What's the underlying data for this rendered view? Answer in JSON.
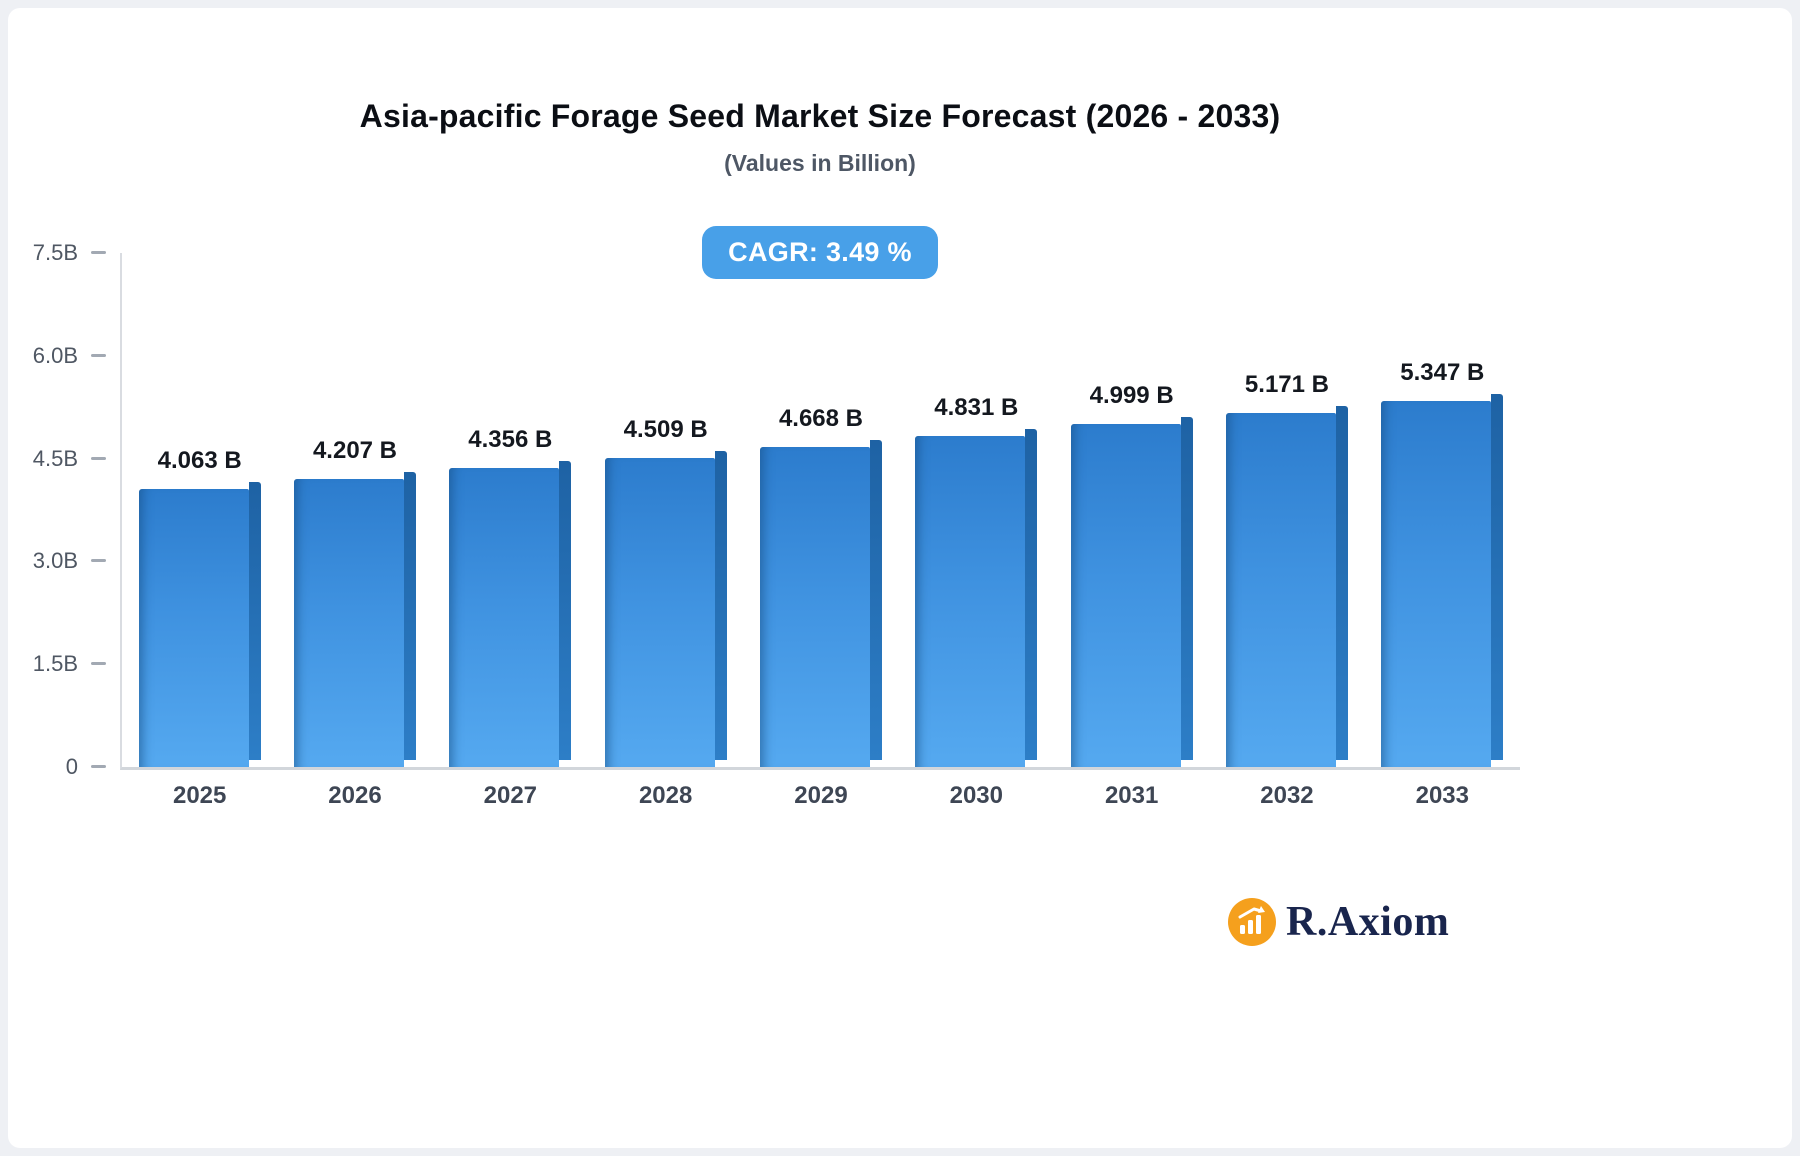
{
  "chart_data": {
    "type": "bar",
    "title": "Asia-pacific Forage Seed Market Size Forecast (2026 - 2033)",
    "subtitle": "(Values in Billion)",
    "cagr_label": "CAGR: 3.49 %",
    "categories": [
      "2025",
      "2026",
      "2027",
      "2028",
      "2029",
      "2030",
      "2031",
      "2032",
      "2033"
    ],
    "values": [
      4.063,
      4.207,
      4.356,
      4.509,
      4.668,
      4.831,
      4.999,
      5.171,
      5.347
    ],
    "value_labels": [
      "4.063 B",
      "4.207 B",
      "4.356 B",
      "4.509 B",
      "4.668 B",
      "4.831 B",
      "4.999 B",
      "5.171 B",
      "5.347 B"
    ],
    "xlabel": "",
    "ylabel": "",
    "ylim": [
      0,
      7.5
    ],
    "yticks": [
      0,
      1.5,
      3.0,
      4.5,
      6.0,
      7.5
    ],
    "ytick_labels": [
      "0",
      "1.5B",
      "3.0B",
      "4.5B",
      "6.0B",
      "7.5B"
    ],
    "grid": "off",
    "legend": "none",
    "colors": {
      "bar_gradient_top": "#2c7ccd",
      "bar_gradient_bottom": "#55a9f0",
      "bar_side_face": "#1e62a4",
      "badge_background": "#48a0e8",
      "badge_text": "#ffffff",
      "axis_line": "#d2d6db",
      "tick_text": "#4f5763",
      "value_label_text": "#14181f"
    }
  },
  "branding": {
    "logo_text": "R.Axiom",
    "logo_icon": "bar-chart-icon",
    "logo_icon_color": "#f5a01d",
    "logo_text_color": "#19254d"
  }
}
